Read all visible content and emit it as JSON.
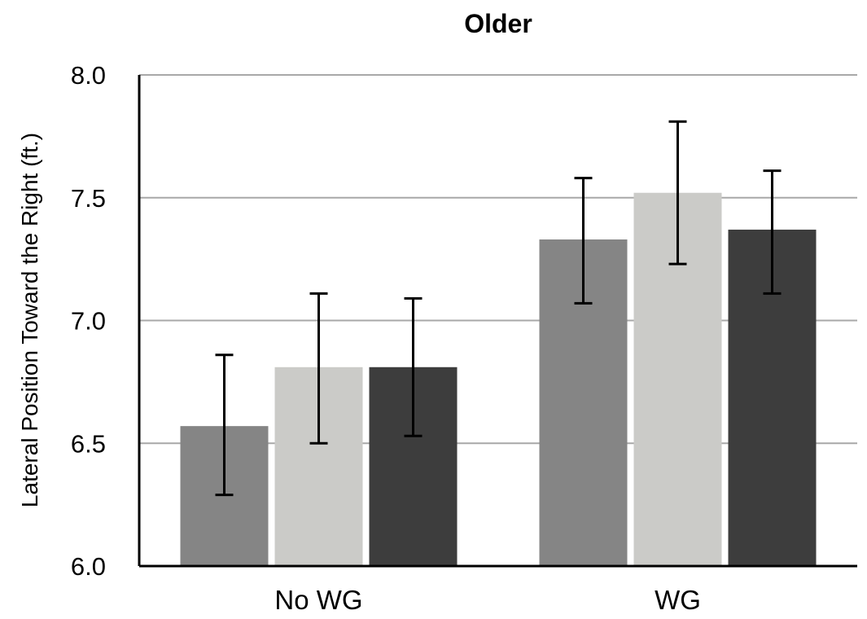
{
  "chart_data": {
    "type": "bar",
    "title": "Older",
    "xlabel": "",
    "ylabel": "Lateral Position Toward the Right (ft.)",
    "ylim": [
      6.0,
      8.0
    ],
    "yticks": [
      "6.0",
      "6.5",
      "7.0",
      "7.5",
      "8.0"
    ],
    "grid": true,
    "legend": "none",
    "categories": [
      "No WG",
      "WG"
    ],
    "series": [
      {
        "color": "#858585",
        "values": [
          6.57,
          7.33
        ],
        "err_low": [
          6.29,
          7.07
        ],
        "err_high": [
          6.86,
          7.58
        ]
      },
      {
        "color": "#cbcbc8",
        "values": [
          6.81,
          7.52
        ],
        "err_low": [
          6.5,
          7.23
        ],
        "err_high": [
          7.11,
          7.81
        ]
      },
      {
        "color": "#3d3d3d",
        "values": [
          6.81,
          7.37
        ],
        "err_low": [
          6.53,
          7.11
        ],
        "err_high": [
          7.09,
          7.61
        ]
      }
    ]
  }
}
